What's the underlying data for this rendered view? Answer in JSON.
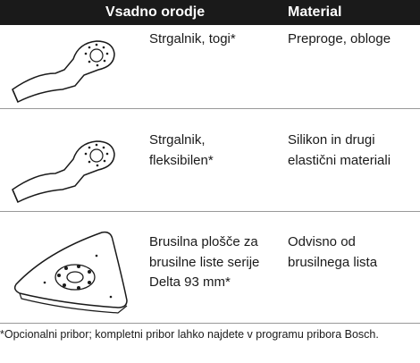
{
  "table": {
    "header": [
      "Vsadno orodje",
      "Material"
    ],
    "rows": [
      [
        "Strgalnik, togi*",
        "Preproge, obloge"
      ],
      [
        "Strgalnik, fleksibilen*",
        "Silikon in drugi elastični materiali"
      ],
      [
        "Brusilna plošče za brusilne liste serije Delta 93 mm*",
        "Odvisno od brusilnega lista"
      ]
    ]
  },
  "footnote": "*Opcionalni pribor; kompletni pribor lahko najdete v programu pribora Bosch."
}
